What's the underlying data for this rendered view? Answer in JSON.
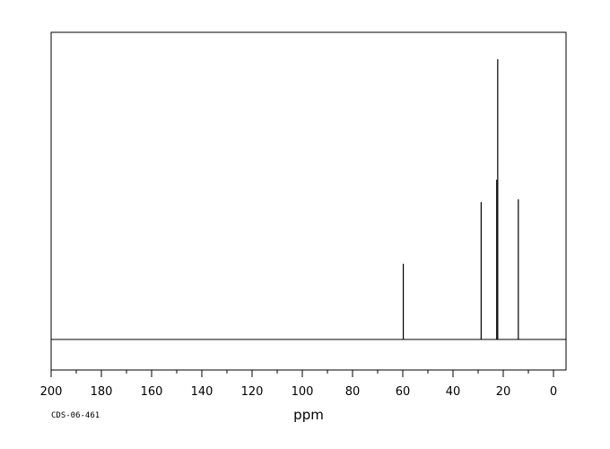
{
  "chart_data": {
    "type": "line",
    "title": "",
    "xlabel": "ppm",
    "ylabel": "",
    "xlim": [
      200,
      -5
    ],
    "x_reversed": true,
    "ylim": [
      0,
      1
    ],
    "grid": false,
    "x_ticks_major": [
      200,
      180,
      160,
      140,
      120,
      100,
      80,
      60,
      40,
      20,
      0
    ],
    "x_tick_labels": [
      "200",
      "180",
      "160",
      "140",
      "120",
      "100",
      "80",
      "60",
      "40",
      "20",
      "0"
    ],
    "x_ticks_minor_step": 10,
    "peaks": [
      {
        "ppm": 59.8,
        "intensity": 0.27
      },
      {
        "ppm": 28.8,
        "intensity": 0.49
      },
      {
        "ppm": 22.6,
        "intensity": 0.57
      },
      {
        "ppm": 22.2,
        "intensity": 1.0
      },
      {
        "ppm": 14.0,
        "intensity": 0.5
      }
    ]
  },
  "footer": {
    "code": "CDS-06-461"
  }
}
